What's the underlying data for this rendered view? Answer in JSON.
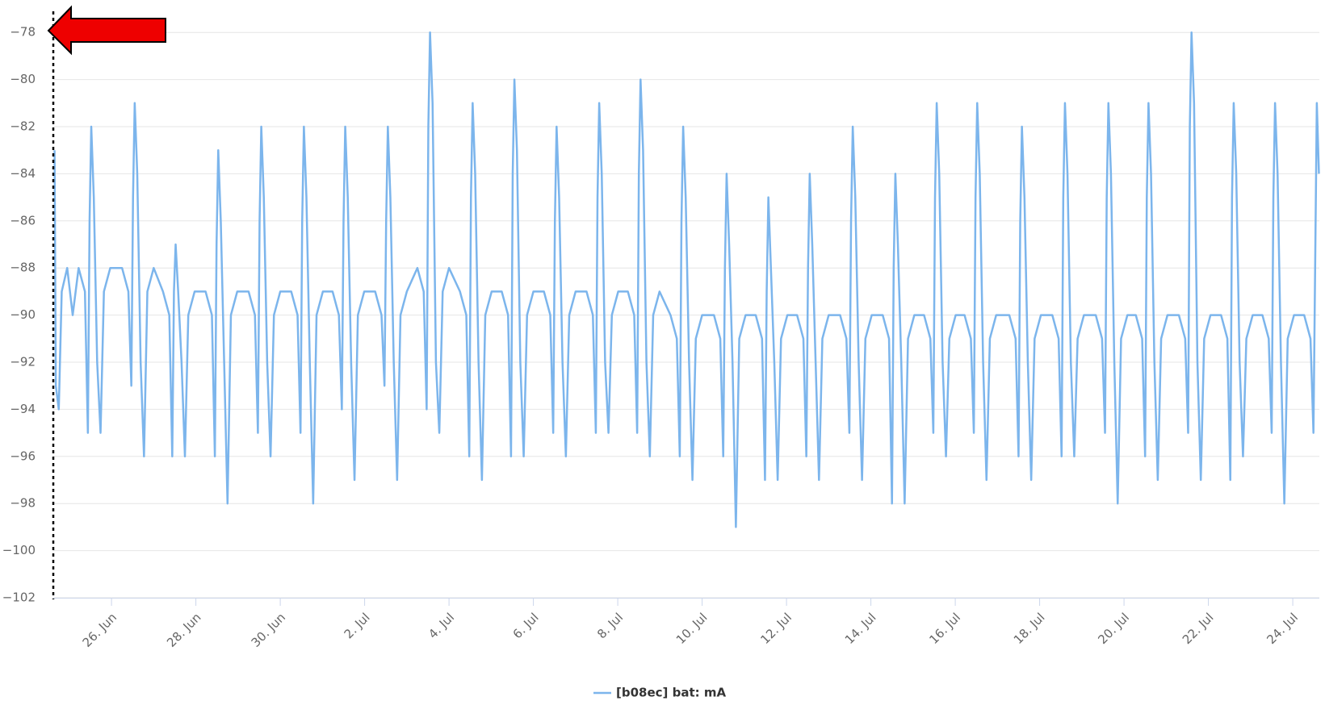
{
  "chart_data": {
    "type": "line",
    "x": [
      24.65,
      24.68,
      24.75,
      24.82,
      24.95,
      25.08,
      25.22,
      25.37,
      25.44,
      25.48,
      25.52,
      25.58,
      25.66,
      25.74,
      25.82,
      25.97,
      26.25,
      26.4,
      26.47,
      26.51,
      26.55,
      26.61,
      26.69,
      26.77,
      26.85,
      27.0,
      27.22,
      27.37,
      27.44,
      27.48,
      27.52,
      27.58,
      27.66,
      27.74,
      27.82,
      27.97,
      28.23,
      28.38,
      28.45,
      28.49,
      28.53,
      28.59,
      28.67,
      28.75,
      28.83,
      28.98,
      29.25,
      29.4,
      29.47,
      29.51,
      29.55,
      29.61,
      29.69,
      29.77,
      29.85,
      30.0,
      30.26,
      30.41,
      30.48,
      30.52,
      30.56,
      30.62,
      30.7,
      30.78,
      30.86,
      31.01,
      31.24,
      31.39,
      31.46,
      31.5,
      31.54,
      31.6,
      31.68,
      31.76,
      31.84,
      31.99,
      32.25,
      32.4,
      32.47,
      32.51,
      32.55,
      32.61,
      32.69,
      32.77,
      32.85,
      33.0,
      33.25,
      33.4,
      33.47,
      33.51,
      33.55,
      33.61,
      33.69,
      33.77,
      33.85,
      34.0,
      34.26,
      34.41,
      34.48,
      34.52,
      34.56,
      34.62,
      34.7,
      34.78,
      34.86,
      35.01,
      35.25,
      35.4,
      35.47,
      35.51,
      35.55,
      35.61,
      35.69,
      35.77,
      35.85,
      36.0,
      36.25,
      36.4,
      36.47,
      36.51,
      36.55,
      36.61,
      36.69,
      36.77,
      36.85,
      37.0,
      37.26,
      37.41,
      37.48,
      37.52,
      37.56,
      37.62,
      37.7,
      37.78,
      37.86,
      38.01,
      38.24,
      38.39,
      38.46,
      38.5,
      38.54,
      38.6,
      38.68,
      38.76,
      38.84,
      38.99,
      39.25,
      39.4,
      39.47,
      39.51,
      39.55,
      39.61,
      39.69,
      39.77,
      39.85,
      40.0,
      40.28,
      40.43,
      40.5,
      40.54,
      40.58,
      40.64,
      40.72,
      40.8,
      40.88,
      41.03,
      41.27,
      41.42,
      41.49,
      41.53,
      41.57,
      41.63,
      41.71,
      41.79,
      41.87,
      42.02,
      42.25,
      42.4,
      42.47,
      42.51,
      42.55,
      42.61,
      42.69,
      42.77,
      42.85,
      43.0,
      43.27,
      43.42,
      43.49,
      43.53,
      43.57,
      43.63,
      43.71,
      43.79,
      43.87,
      44.02,
      44.28,
      44.43,
      44.5,
      44.54,
      44.58,
      44.64,
      44.72,
      44.8,
      44.88,
      45.03,
      45.26,
      45.41,
      45.48,
      45.52,
      45.56,
      45.62,
      45.7,
      45.78,
      45.86,
      46.01,
      46.22,
      46.37,
      46.44,
      46.48,
      46.52,
      46.58,
      46.66,
      46.74,
      46.82,
      46.97,
      47.28,
      47.43,
      47.5,
      47.54,
      47.58,
      47.64,
      47.72,
      47.8,
      47.88,
      48.03,
      48.3,
      48.45,
      48.52,
      48.56,
      48.6,
      48.66,
      48.74,
      48.82,
      48.9,
      49.05,
      49.33,
      49.48,
      49.55,
      49.59,
      49.63,
      49.69,
      49.77,
      49.85,
      49.93,
      50.08,
      50.28,
      50.43,
      50.5,
      50.54,
      50.58,
      50.64,
      50.72,
      50.8,
      50.88,
      51.03,
      51.3,
      51.45,
      51.52,
      51.56,
      51.6,
      51.66,
      51.74,
      51.82,
      51.9,
      52.05,
      52.3,
      52.45,
      52.52,
      52.56,
      52.6,
      52.66,
      52.74,
      52.82,
      52.9,
      53.05,
      53.28,
      53.43,
      53.5,
      53.54,
      53.58,
      53.64,
      53.72,
      53.8,
      53.88,
      54.03,
      54.27,
      54.42,
      54.49,
      54.53,
      54.57,
      54.62
    ],
    "series": [
      {
        "name": "[b08ec] bat: mA",
        "color": "#7cb5ec",
        "values": [
          -83,
          -93,
          -94,
          -89,
          -88,
          -90,
          -88,
          -89,
          -95,
          -86,
          -82,
          -85,
          -92,
          -95,
          -89,
          -88,
          -88,
          -89,
          -93,
          -85,
          -81,
          -84,
          -92,
          -96,
          -89,
          -88,
          -89,
          -90,
          -96,
          -89,
          -87,
          -89,
          -92,
          -96,
          -90,
          -89,
          -89,
          -90,
          -96,
          -87,
          -83,
          -86,
          -92,
          -98,
          -90,
          -89,
          -89,
          -90,
          -95,
          -86,
          -82,
          -85,
          -92,
          -96,
          -90,
          -89,
          -89,
          -90,
          -95,
          -86,
          -82,
          -85,
          -92,
          -98,
          -90,
          -89,
          -89,
          -90,
          -94,
          -86,
          -82,
          -85,
          -92,
          -97,
          -90,
          -89,
          -89,
          -90,
          -93,
          -86,
          -82,
          -85,
          -92,
          -97,
          -90,
          -89,
          -88,
          -89,
          -94,
          -82,
          -78,
          -81,
          -92,
          -95,
          -89,
          -88,
          -89,
          -90,
          -96,
          -85,
          -81,
          -84,
          -92,
          -97,
          -90,
          -89,
          -89,
          -90,
          -96,
          -84,
          -80,
          -83,
          -92,
          -96,
          -90,
          -89,
          -89,
          -90,
          -95,
          -86,
          -82,
          -85,
          -92,
          -96,
          -90,
          -89,
          -89,
          -90,
          -95,
          -85,
          -81,
          -84,
          -92,
          -95,
          -90,
          -89,
          -89,
          -90,
          -95,
          -84,
          -80,
          -83,
          -92,
          -96,
          -90,
          -89,
          -90,
          -91,
          -96,
          -86,
          -82,
          -85,
          -92,
          -97,
          -91,
          -90,
          -90,
          -91,
          -96,
          -88,
          -84,
          -87,
          -92,
          -99,
          -91,
          -90,
          -90,
          -91,
          -97,
          -89,
          -85,
          -88,
          -92,
          -97,
          -91,
          -90,
          -90,
          -91,
          -96,
          -88,
          -84,
          -87,
          -92,
          -97,
          -91,
          -90,
          -90,
          -91,
          -95,
          -86,
          -82,
          -85,
          -92,
          -97,
          -91,
          -90,
          -90,
          -91,
          -98,
          -88,
          -84,
          -87,
          -92,
          -98,
          -91,
          -90,
          -90,
          -91,
          -95,
          -85,
          -81,
          -84,
          -92,
          -96,
          -91,
          -90,
          -90,
          -91,
          -95,
          -85,
          -81,
          -84,
          -92,
          -97,
          -91,
          -90,
          -90,
          -91,
          -96,
          -86,
          -82,
          -85,
          -92,
          -97,
          -91,
          -90,
          -90,
          -91,
          -96,
          -85,
          -81,
          -84,
          -92,
          -96,
          -91,
          -90,
          -90,
          -91,
          -95,
          -85,
          -81,
          -84,
          -92,
          -98,
          -91,
          -90,
          -90,
          -91,
          -96,
          -85,
          -81,
          -84,
          -92,
          -97,
          -91,
          -90,
          -90,
          -91,
          -95,
          -82,
          -78,
          -81,
          -92,
          -97,
          -91,
          -90,
          -90,
          -91,
          -97,
          -85,
          -81,
          -84,
          -92,
          -96,
          -91,
          -90,
          -90,
          -91,
          -95,
          -85,
          -81,
          -84,
          -92,
          -98,
          -91,
          -90,
          -90,
          -91,
          -95,
          -88,
          -81,
          -84
        ]
      }
    ],
    "xlim": [
      24.62,
      54.63
    ],
    "xticks": [
      {
        "value": 26,
        "label": "26. Jun"
      },
      {
        "value": 28,
        "label": "28. Jun"
      },
      {
        "value": 30,
        "label": "30. Jun"
      },
      {
        "value": 32,
        "label": "2. Jul"
      },
      {
        "value": 34,
        "label": "4. Jul"
      },
      {
        "value": 36,
        "label": "6. Jul"
      },
      {
        "value": 38,
        "label": "8. Jul"
      },
      {
        "value": 40,
        "label": "10. Jul"
      },
      {
        "value": 42,
        "label": "12. Jul"
      },
      {
        "value": 44,
        "label": "14. Jul"
      },
      {
        "value": 46,
        "label": "16. Jul"
      },
      {
        "value": 48,
        "label": "18. Jul"
      },
      {
        "value": 50,
        "label": "20. Jul"
      },
      {
        "value": 52,
        "label": "22. Jul"
      },
      {
        "value": 54,
        "label": "24. Jul"
      }
    ],
    "ylim": [
      -102,
      -77
    ],
    "yticks": [
      {
        "value": -78,
        "label": "−78"
      },
      {
        "value": -80,
        "label": "−80"
      },
      {
        "value": -82,
        "label": "−82"
      },
      {
        "value": -84,
        "label": "−84"
      },
      {
        "value": -86,
        "label": "−86"
      },
      {
        "value": -88,
        "label": "−88"
      },
      {
        "value": -90,
        "label": "−90"
      },
      {
        "value": -92,
        "label": "−92"
      },
      {
        "value": -94,
        "label": "−94"
      },
      {
        "value": -96,
        "label": "−96"
      },
      {
        "value": -98,
        "label": "−98"
      },
      {
        "value": -100,
        "label": "−100"
      },
      {
        "value": -102,
        "label": "−102"
      }
    ],
    "grid": true
  }
}
